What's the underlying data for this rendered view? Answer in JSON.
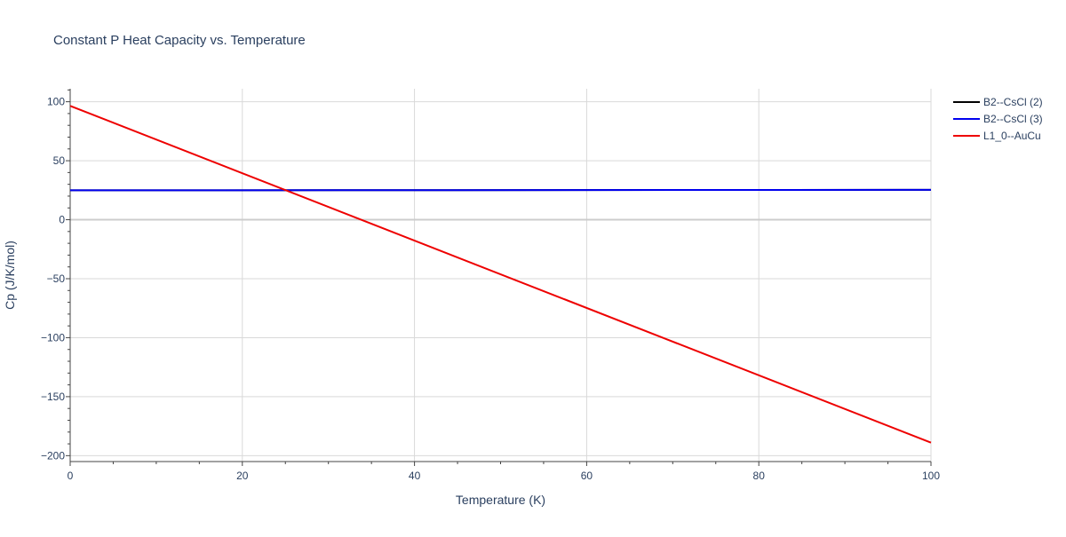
{
  "chart_data": {
    "type": "line",
    "title": "Constant P Heat Capacity vs. Temperature",
    "xlabel": "Temperature (K)",
    "ylabel": "Cp (J/K/mol)",
    "xlim": [
      0,
      100
    ],
    "ylim": [
      -205,
      111
    ],
    "x_ticks": [
      0,
      20,
      40,
      60,
      80,
      100
    ],
    "x_tick_labels": [
      "0",
      "20",
      "40",
      "60",
      "80",
      "100"
    ],
    "y_ticks": [
      100,
      50,
      0,
      -50,
      -100,
      -150,
      -200
    ],
    "y_tick_labels": [
      "100",
      "50",
      "0",
      "−50",
      "−100",
      "−150",
      "−200"
    ],
    "grid": true,
    "legend_position": "top-right",
    "series": [
      {
        "name": "B2--CsCl (2)",
        "color": "#000000",
        "x": [
          0,
          100
        ],
        "y": [
          24.9,
          25.3
        ]
      },
      {
        "name": "B2--CsCl (3)",
        "color": "#0000ee",
        "x": [
          0,
          100
        ],
        "y": [
          24.9,
          25.3
        ]
      },
      {
        "name": "L1_0--AuCu",
        "color": "#ee0000",
        "x": [
          0,
          100
        ],
        "y": [
          96.5,
          -189
        ]
      }
    ]
  }
}
